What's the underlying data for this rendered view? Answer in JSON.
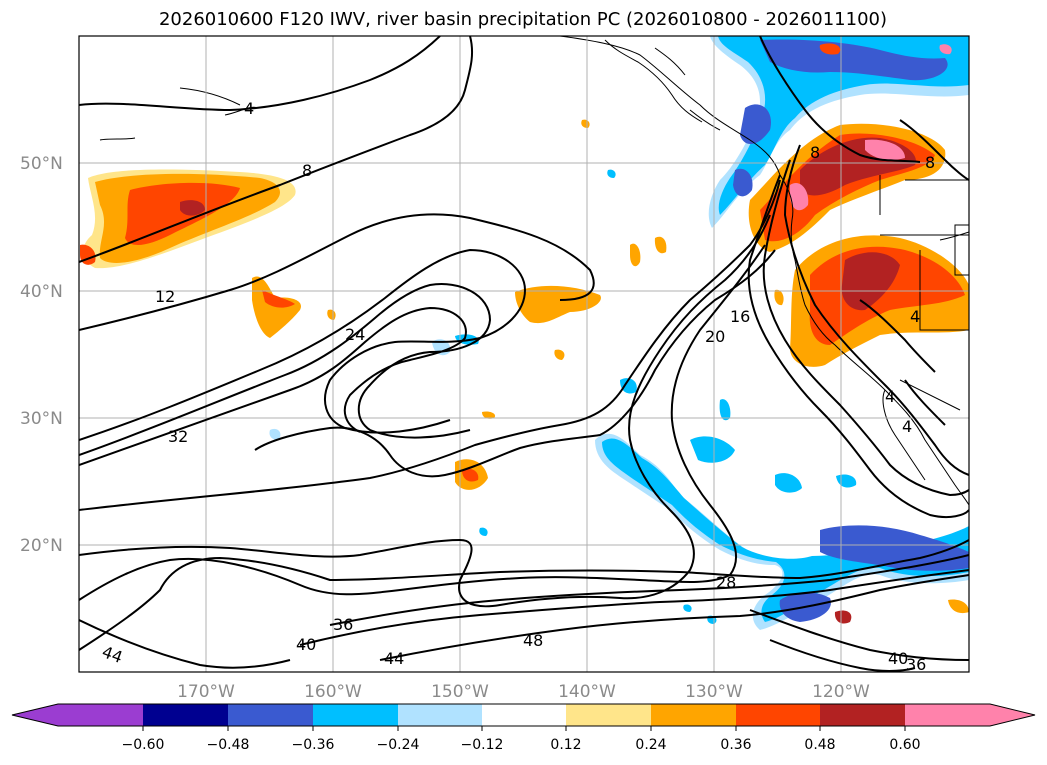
{
  "title": "2026010600 F120 IWV, river basin precipitation PC (2026010800 - 2026011100)",
  "lat_labels": [
    "50°N",
    "40°N",
    "30°N",
    "20°N"
  ],
  "lon_labels": [
    "170°W",
    "160°W",
    "150°W",
    "140°W",
    "130°W",
    "120°W"
  ],
  "colorbar": {
    "colors": [
      "#9b3dd1",
      "#000090",
      "#3a5ad0",
      "#00bfff",
      "#b0e2ff",
      "#ffffff",
      "#ffe58a",
      "#ffa500",
      "#ff4500",
      "#b22222",
      "#ff82ab"
    ],
    "tick_labels": [
      "−0.60",
      "−0.48",
      "−0.36",
      "−0.24",
      "−0.12",
      "0.12",
      "0.24",
      "0.36",
      "0.48",
      "0.60"
    ]
  },
  "contour_labels": [
    "4",
    "8",
    "12",
    "24",
    "32",
    "20",
    "16",
    "8",
    "8",
    "4",
    "4",
    "4",
    "28",
    "36",
    "40",
    "44",
    "48",
    "44",
    "40",
    "36"
  ]
}
